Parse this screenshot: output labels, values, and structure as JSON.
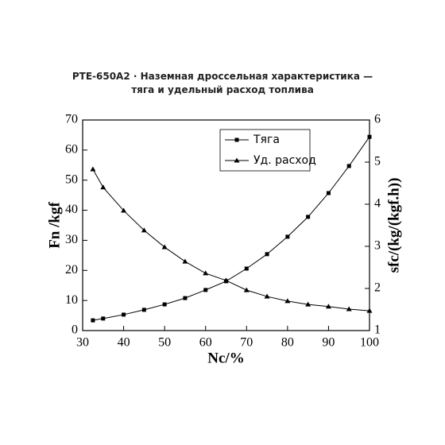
{
  "chart_data": {
    "type": "line",
    "title": "PTE-650A2 · Наземная дроссельная характеристика — тяга и удельный расход топлива",
    "x_label": "Nc/%",
    "y_label": "Fn /kgf",
    "y2_label": "sfc/(kg/(kgf.h))",
    "x": [
      32.5,
      35,
      40,
      45,
      50,
      55,
      60,
      65,
      70,
      75,
      80,
      85,
      90,
      95,
      100
    ],
    "series": [
      {
        "name": "Тяга",
        "color": "#000000",
        "marker": "square",
        "values": [
          3.4,
          4.0,
          5.3,
          6.9,
          8.7,
          10.8,
          13.5,
          16.4,
          20.6,
          25.4,
          31.2,
          37.8,
          45.7,
          54.7,
          64.4
        ]
      },
      {
        "name": "Уд. расход",
        "color": "#000000",
        "marker": "triangle",
        "axis": "y2",
        "values": [
          4.83,
          4.4,
          3.85,
          3.38,
          2.98,
          2.64,
          2.36,
          2.19,
          1.96,
          1.81,
          1.7,
          1.62,
          1.57,
          1.51,
          1.47
        ]
      }
    ],
    "xlim": [
      30,
      100
    ],
    "xticks": [
      30,
      40,
      50,
      60,
      70,
      80,
      90,
      100
    ],
    "ylim": [
      0,
      70
    ],
    "yticks": [
      0,
      10,
      20,
      30,
      40,
      50,
      60,
      70
    ],
    "y2lim": [
      1,
      6
    ],
    "y2ticks": [
      1,
      2,
      3,
      4,
      5,
      6
    ],
    "grid": false,
    "legend": "top"
  }
}
